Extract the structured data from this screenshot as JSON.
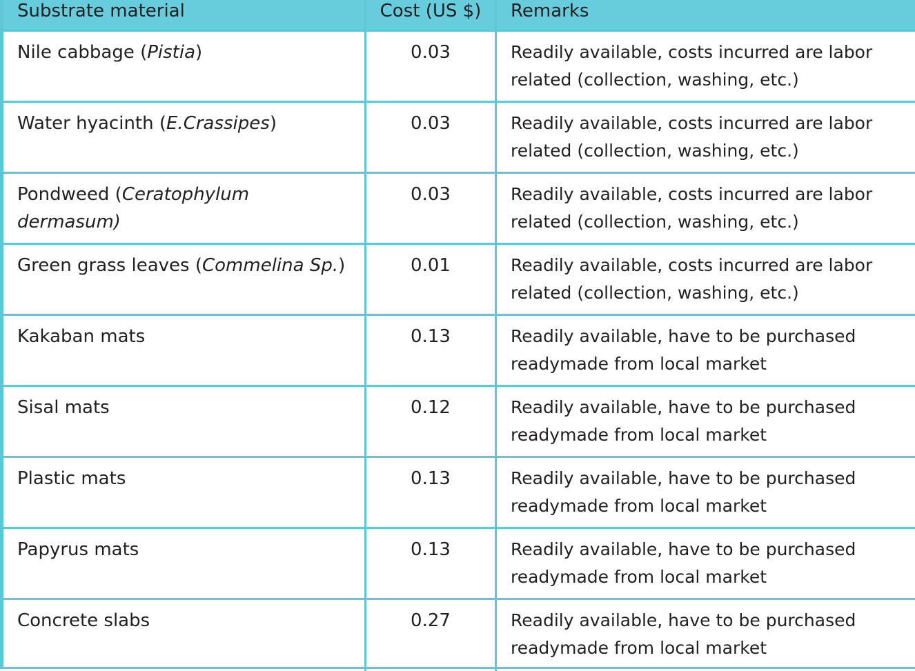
{
  "colors": {
    "header_background": "#67ccdb",
    "border": "#5ec6d6",
    "text": "#231f20"
  },
  "header": {
    "material": "Substrate material",
    "cost": "Cost (US $)",
    "remarks": "Remarks"
  },
  "rows": [
    {
      "name": "Nile cabbage (",
      "sci": "Pistia",
      "suffix": ")",
      "cost": "0.03",
      "remarks": "Readily available, costs incurred are labor related  (collection,  washing, etc.)"
    },
    {
      "name": "Water hyacinth  (",
      "sci": "E.Crassipes",
      "suffix": ")",
      "cost": "0.03",
      "remarks": "Readily available, costs incurred are labor related (collection, washing, etc.)"
    },
    {
      "name": "Pondweed (",
      "sci": "Ceratophylum dermasum)",
      "suffix": "",
      "cost": "0.03",
      "remarks": "Readily available, costs incurred are labor related (collection, washing, etc.)"
    },
    {
      "name": "Green grass leaves (",
      "sci": "Commelina Sp.",
      "suffix": ")",
      "cost": "0.01",
      "remarks": "Readily available, costs incurred are labor related (collection, washing, etc.)"
    },
    {
      "name": "Kakaban mats",
      "sci": "",
      "suffix": "",
      "cost": "0.13",
      "remarks": "Readily available, have to be purchased readymade from local market"
    },
    {
      "name": "Sisal mats",
      "sci": "",
      "suffix": "",
      "cost": "0.12",
      "remarks": "Readily available, have to be purchased readymade from local market"
    },
    {
      "name": "Plastic mats",
      "sci": "",
      "suffix": "",
      "cost": "0.13",
      "remarks": "Readily available, have to be purchased readymade from local market"
    },
    {
      "name": "Papyrus mats",
      "sci": "",
      "suffix": "",
      "cost": "0.13",
      "remarks": "Readily available, have to be purchased readymade from local market"
    },
    {
      "name": "Concrete slabs",
      "sci": "",
      "suffix": "",
      "cost": "0.27",
      "remarks": "Readily available, have to be purchased readymade from local market"
    }
  ]
}
